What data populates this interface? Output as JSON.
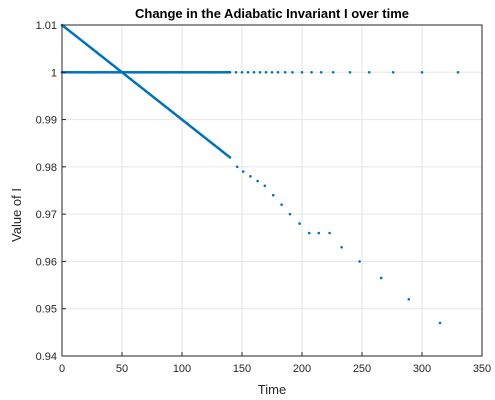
{
  "chart_data": {
    "type": "scatter",
    "title": "Change in the Adiabatic Invariant I over time",
    "xlabel": "Time",
    "ylabel": "Value of I",
    "xlim": [
      0,
      350
    ],
    "ylim": [
      0.94,
      1.01
    ],
    "xticks": [
      "0",
      "50",
      "100",
      "150",
      "200",
      "250",
      "300",
      "350"
    ],
    "yticks": [
      "0.94",
      "0.95",
      "0.96",
      "0.97",
      "0.98",
      "0.99",
      "1",
      "1.01"
    ],
    "grid": true,
    "marker_color": "#0072BD",
    "series": [
      {
        "values_note": "decreasing series",
        "x": [
          0,
          5,
          10,
          15,
          20,
          25,
          30,
          35,
          40,
          45,
          50,
          55,
          60,
          65,
          70,
          75,
          80,
          85,
          90,
          95,
          100,
          105,
          110,
          115,
          120,
          125,
          130,
          135,
          140,
          146,
          151,
          157,
          163,
          169,
          176,
          183,
          190,
          198,
          206,
          214,
          223,
          233,
          248,
          266,
          289,
          315
        ],
        "y": [
          1.01,
          1.009,
          1.008,
          1.007,
          1.006,
          1.005,
          1.004,
          1.003,
          1.002,
          1.001,
          1.0,
          0.999,
          0.998,
          0.997,
          0.996,
          0.995,
          0.994,
          0.993,
          0.992,
          0.991,
          0.99,
          0.989,
          0.988,
          0.987,
          0.986,
          0.985,
          0.984,
          0.983,
          0.982,
          0.98,
          0.979,
          0.978,
          0.977,
          0.976,
          0.974,
          0.972,
          0.97,
          0.968,
          0.966,
          0.966,
          0.966,
          0.963,
          0.96,
          0.9565,
          0.952,
          0.947
        ]
      },
      {
        "values_note": "constant series",
        "x": [
          0,
          5,
          10,
          15,
          20,
          25,
          30,
          35,
          40,
          45,
          50,
          55,
          60,
          65,
          70,
          75,
          80,
          85,
          90,
          95,
          100,
          105,
          110,
          115,
          120,
          125,
          130,
          135,
          140,
          145,
          150,
          155,
          160,
          165,
          170,
          175,
          180,
          186,
          192,
          200,
          208,
          216,
          226,
          240,
          256,
          276,
          300,
          330
        ],
        "y": [
          1,
          1,
          1,
          1,
          1,
          1,
          1,
          1,
          1,
          1,
          1,
          1,
          1,
          1,
          1,
          1,
          1,
          1,
          1,
          1,
          1,
          1,
          1,
          1,
          1,
          1,
          1,
          1,
          1,
          1,
          1,
          1,
          1,
          1,
          1,
          1,
          1,
          1,
          1,
          1,
          1,
          1,
          1,
          1,
          1,
          1,
          1,
          1
        ]
      }
    ]
  }
}
